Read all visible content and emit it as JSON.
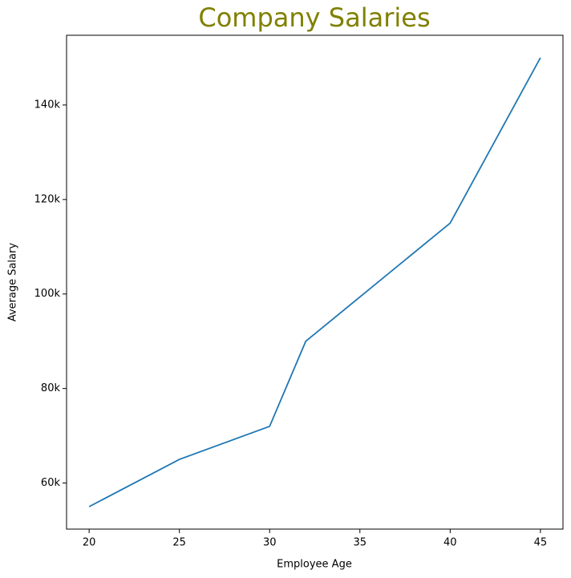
{
  "chart_data": {
    "type": "line",
    "title": "Company Salaries",
    "title_color": "#808000",
    "x_label": "Employee Age",
    "y_label": "Average Salary",
    "x": [
      20,
      25,
      30,
      32,
      40,
      45
    ],
    "series": [
      {
        "color": "#1f77b4",
        "values": [
          55000,
          65000,
          72000,
          90000,
          115000,
          150000
        ]
      }
    ],
    "xlim": [
      18.75,
      46.25
    ],
    "ylim": [
      50250,
      154750
    ],
    "xticks": [
      20,
      25,
      30,
      35,
      40,
      45
    ],
    "yticks": [
      {
        "value": 60000,
        "label": "60k"
      },
      {
        "value": 80000,
        "label": "80k"
      },
      {
        "value": 100000,
        "label": "100k"
      },
      {
        "value": 120000,
        "label": "120k"
      },
      {
        "value": 140000,
        "label": "140k"
      }
    ],
    "grid": false
  }
}
